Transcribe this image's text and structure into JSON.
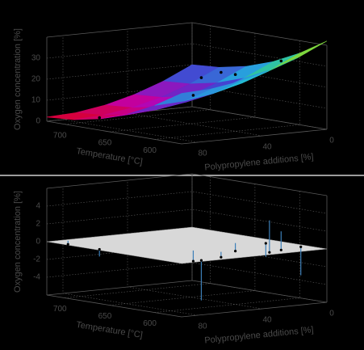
{
  "chart_data": [
    {
      "type": "surface",
      "xlabel": "Temperature [°C]",
      "ylabel": "Polypropylene additions [%]",
      "zlabel": "Oxygen concentration [%]",
      "x": [
        570,
        600,
        630,
        660,
        690,
        720
      ],
      "y": [
        0,
        18,
        36,
        54,
        72,
        90
      ],
      "z": [
        [
          42,
          34.1,
          27.9,
          23.5,
          20.9,
          20
        ],
        [
          35.5,
          27.6,
          21.4,
          17.0,
          14.4,
          13.5
        ],
        [
          30.5,
          22.6,
          16.4,
          12.0,
          9.4,
          8.5
        ],
        [
          26.9,
          19.0,
          12.8,
          8.4,
          5.8,
          4.9
        ],
        [
          24.7,
          16.8,
          10.6,
          6.2,
          3.6,
          2.7
        ],
        [
          24,
          16.1,
          9.9,
          5.5,
          2.9,
          2
        ]
      ],
      "xlim": [
        570,
        720
      ],
      "ylim": [
        0,
        90
      ],
      "zlim": [
        0,
        40
      ],
      "xticks": [
        700,
        650,
        600
      ],
      "yticks": [
        0,
        40,
        80
      ],
      "zticks": [
        0,
        10,
        20,
        30
      ],
      "colormap": [
        "#e00000",
        "#c000b0",
        "#4838d0",
        "#20b8e0",
        "#40d060",
        "#f0e000"
      ],
      "scatter": {
        "x": [
          700,
          665,
          575,
          575,
          580,
          580,
          585,
          590,
          600,
          620
        ],
        "y": [
          88,
          88,
          80,
          75,
          60,
          30,
          20,
          5,
          40,
          10
        ],
        "z": [
          9,
          5.5,
          22,
          30,
          31,
          38,
          33,
          45,
          27,
          35
        ]
      },
      "point_color": "#000000"
    },
    {
      "type": "residual",
      "xlabel": "Temperature [°C]",
      "ylabel": "Polypropylene additions [%]",
      "zlabel": "Oxygen concentration [%]",
      "xlim": [
        570,
        720
      ],
      "ylim": [
        0,
        90
      ],
      "zlim": [
        -6,
        6
      ],
      "xticks": [
        700,
        650,
        600
      ],
      "yticks": [
        0,
        40,
        80
      ],
      "zticks": [
        -4,
        -2,
        0,
        2,
        4
      ],
      "plane_color": "#d8d8d8",
      "stem_color": "#3c7fb8",
      "point_color": "#000000",
      "scatter": {
        "x": [
          700,
          665,
          575,
          575,
          580,
          580,
          585,
          590,
          600,
          620
        ],
        "y": [
          88,
          88,
          80,
          75,
          60,
          30,
          20,
          5,
          40,
          10
        ],
        "z": [
          0.4,
          -0.8,
          1.2,
          -4.5,
          0.6,
          3.6,
          2.1,
          -3.2,
          0.9,
          -1.5
        ]
      }
    }
  ]
}
